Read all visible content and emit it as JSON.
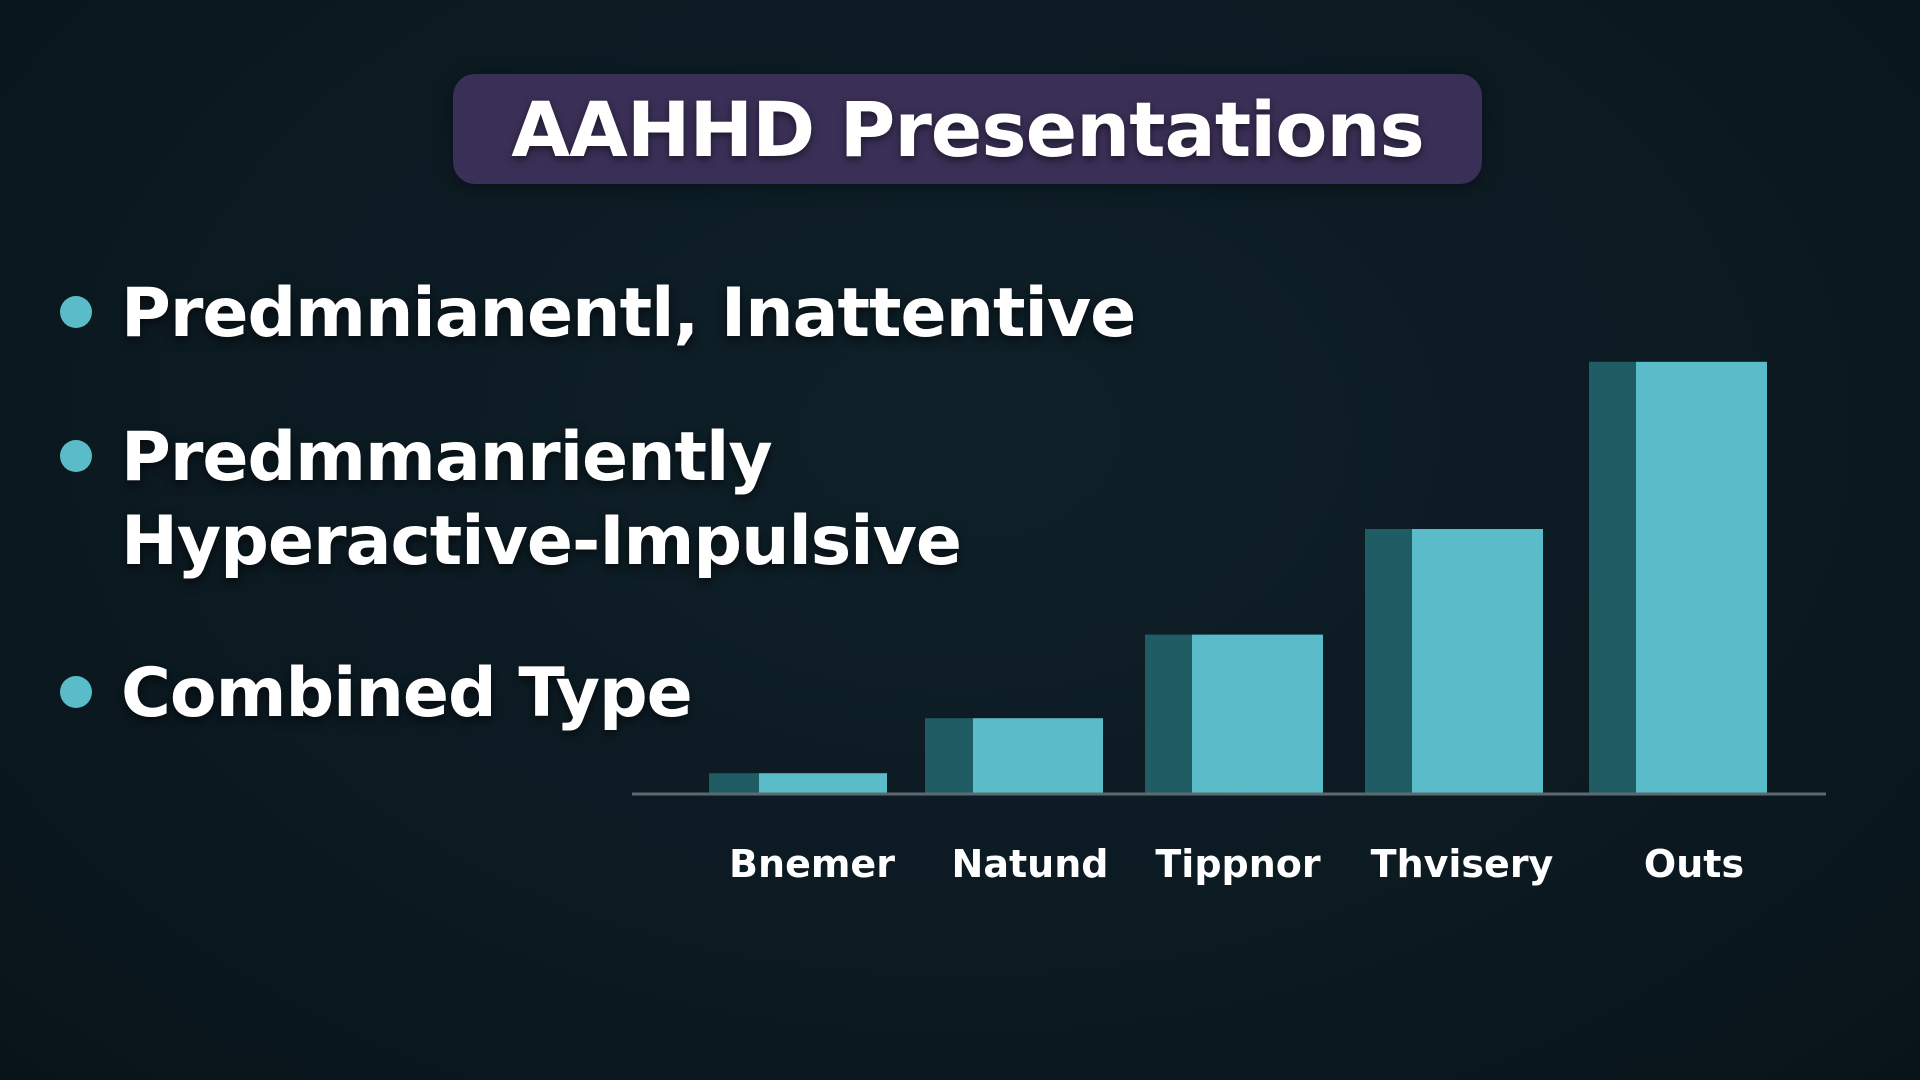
{
  "title": "AAHHD Presentations",
  "bullets": [
    {
      "lines": [
        "Predmnianentl, Inattentive"
      ]
    },
    {
      "lines": [
        "Predmmanriently",
        "Hyperactive-Impulsive"
      ]
    },
    {
      "lines": [
        "Combined Type"
      ]
    }
  ],
  "colors": {
    "background": "#0c1a22",
    "title_box": "#3a2f56",
    "bullet_dot": "#5bbcc9",
    "bar_front": "#5bbcc9",
    "bar_side": "#1f5c63",
    "axis": "#5c6a70"
  },
  "chart_data": {
    "type": "bar",
    "categories": [
      "Bnemer",
      "Natund",
      "Tippnor",
      "Thvisery",
      "Outs"
    ],
    "values": [
      4.5,
      17,
      36,
      60,
      98
    ],
    "ylim": [
      0,
      100
    ],
    "grid": false,
    "legend": "none"
  }
}
